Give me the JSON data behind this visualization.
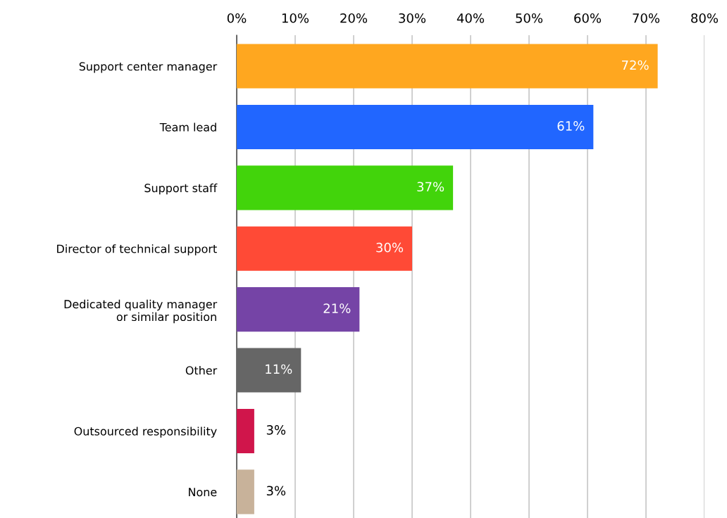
{
  "chart_data": {
    "type": "bar",
    "orientation": "horizontal",
    "categories": [
      "Support center manager",
      "Team lead",
      "Support staff",
      "Director of technical support",
      "Dedicated quality manager\nor similar position",
      "Other",
      "Outsourced responsibility",
      "None"
    ],
    "values": [
      72,
      61,
      37,
      30,
      21,
      11,
      3,
      3
    ],
    "value_labels": [
      "72%",
      "61%",
      "37%",
      "30%",
      "21%",
      "11%",
      "3%",
      "3%"
    ],
    "colors": [
      "#ffa71f",
      "#2166ff",
      "#42d40b",
      "#ff4a36",
      "#7544a6",
      "#666666",
      "#d0154b",
      "#c8b29a"
    ],
    "xlim": [
      0,
      80
    ],
    "xticks": [
      {
        "value": 0,
        "label": "0%"
      },
      {
        "value": 10,
        "label": "10%"
      },
      {
        "value": 20,
        "label": "20%"
      },
      {
        "value": 30,
        "label": "30%"
      },
      {
        "value": 40,
        "label": "40%"
      },
      {
        "value": 50,
        "label": "50%"
      },
      {
        "value": 60,
        "label": "60%"
      },
      {
        "value": 70,
        "label": "70%"
      },
      {
        "value": 80,
        "label": "80%"
      }
    ],
    "grid": "x",
    "legend": false
  }
}
